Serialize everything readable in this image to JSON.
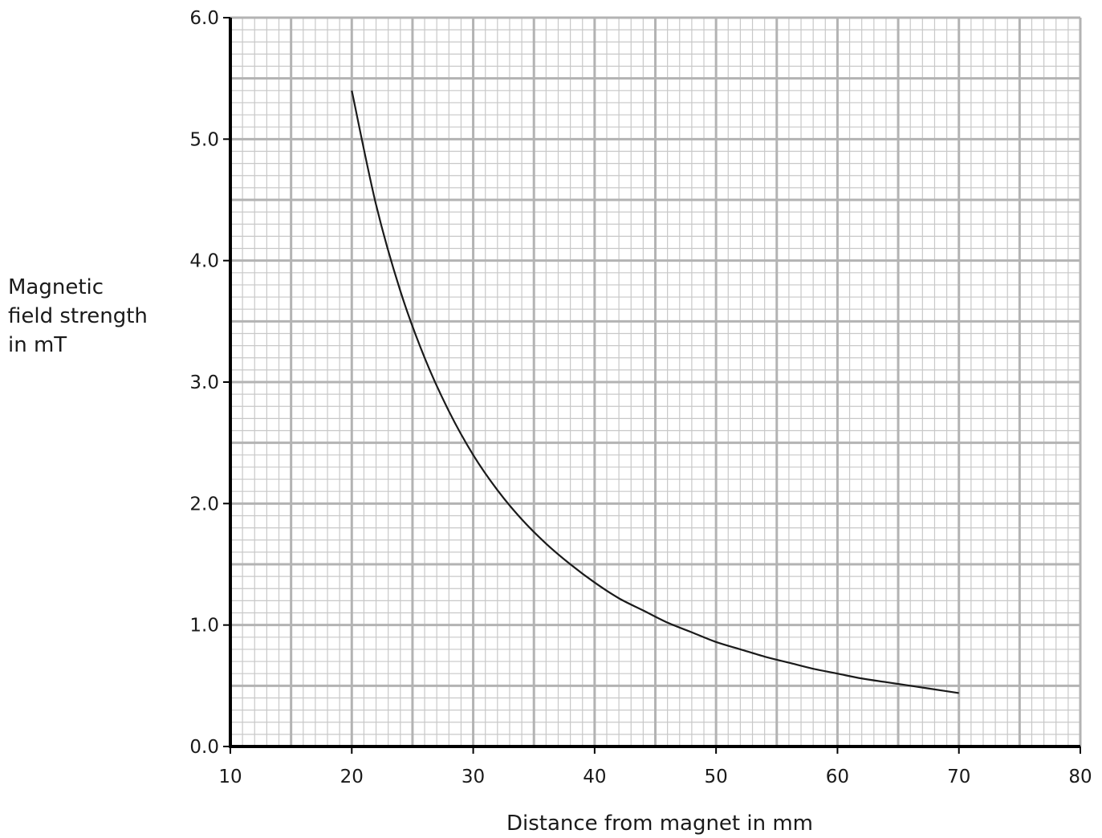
{
  "chart_data": {
    "type": "line",
    "title": "",
    "xlabel": "Distance from magnet in mm",
    "ylabel_lines": [
      "Magnetic",
      "field strength",
      "in mT"
    ],
    "xlim": [
      10,
      80
    ],
    "ylim": [
      0,
      6
    ],
    "x_ticks": [
      10,
      20,
      30,
      40,
      50,
      60,
      70,
      80
    ],
    "x_tick_labels": [
      "10",
      "20",
      "30",
      "40",
      "50",
      "60",
      "70",
      "80"
    ],
    "y_ticks": [
      0,
      1,
      2,
      3,
      4,
      5,
      6
    ],
    "y_tick_labels": [
      "0.0",
      "1.0",
      "2.0",
      "3.0",
      "4.0",
      "5.0",
      "6.0"
    ],
    "grid": {
      "major_x_step": 5,
      "major_y_step": 0.5,
      "minor_x_step": 1,
      "minor_y_step": 0.1
    },
    "colors": {
      "major_grid": "#b3b3b3",
      "minor_grid": "#c8c8c8",
      "axis": "#000000",
      "curve": "#1a1a1a"
    },
    "series": [
      {
        "x": [
          20,
          22,
          24,
          26,
          28,
          30,
          32,
          34,
          36,
          38,
          40,
          42,
          44,
          46,
          48,
          50,
          52,
          54,
          56,
          58,
          60,
          62,
          64,
          66,
          68,
          70
        ],
        "y": [
          5.4,
          4.46,
          3.75,
          3.2,
          2.76,
          2.4,
          2.11,
          1.87,
          1.67,
          1.5,
          1.35,
          1.22,
          1.12,
          1.02,
          0.94,
          0.86,
          0.8,
          0.74,
          0.69,
          0.64,
          0.6,
          0.56,
          0.53,
          0.5,
          0.47,
          0.44
        ]
      }
    ]
  }
}
